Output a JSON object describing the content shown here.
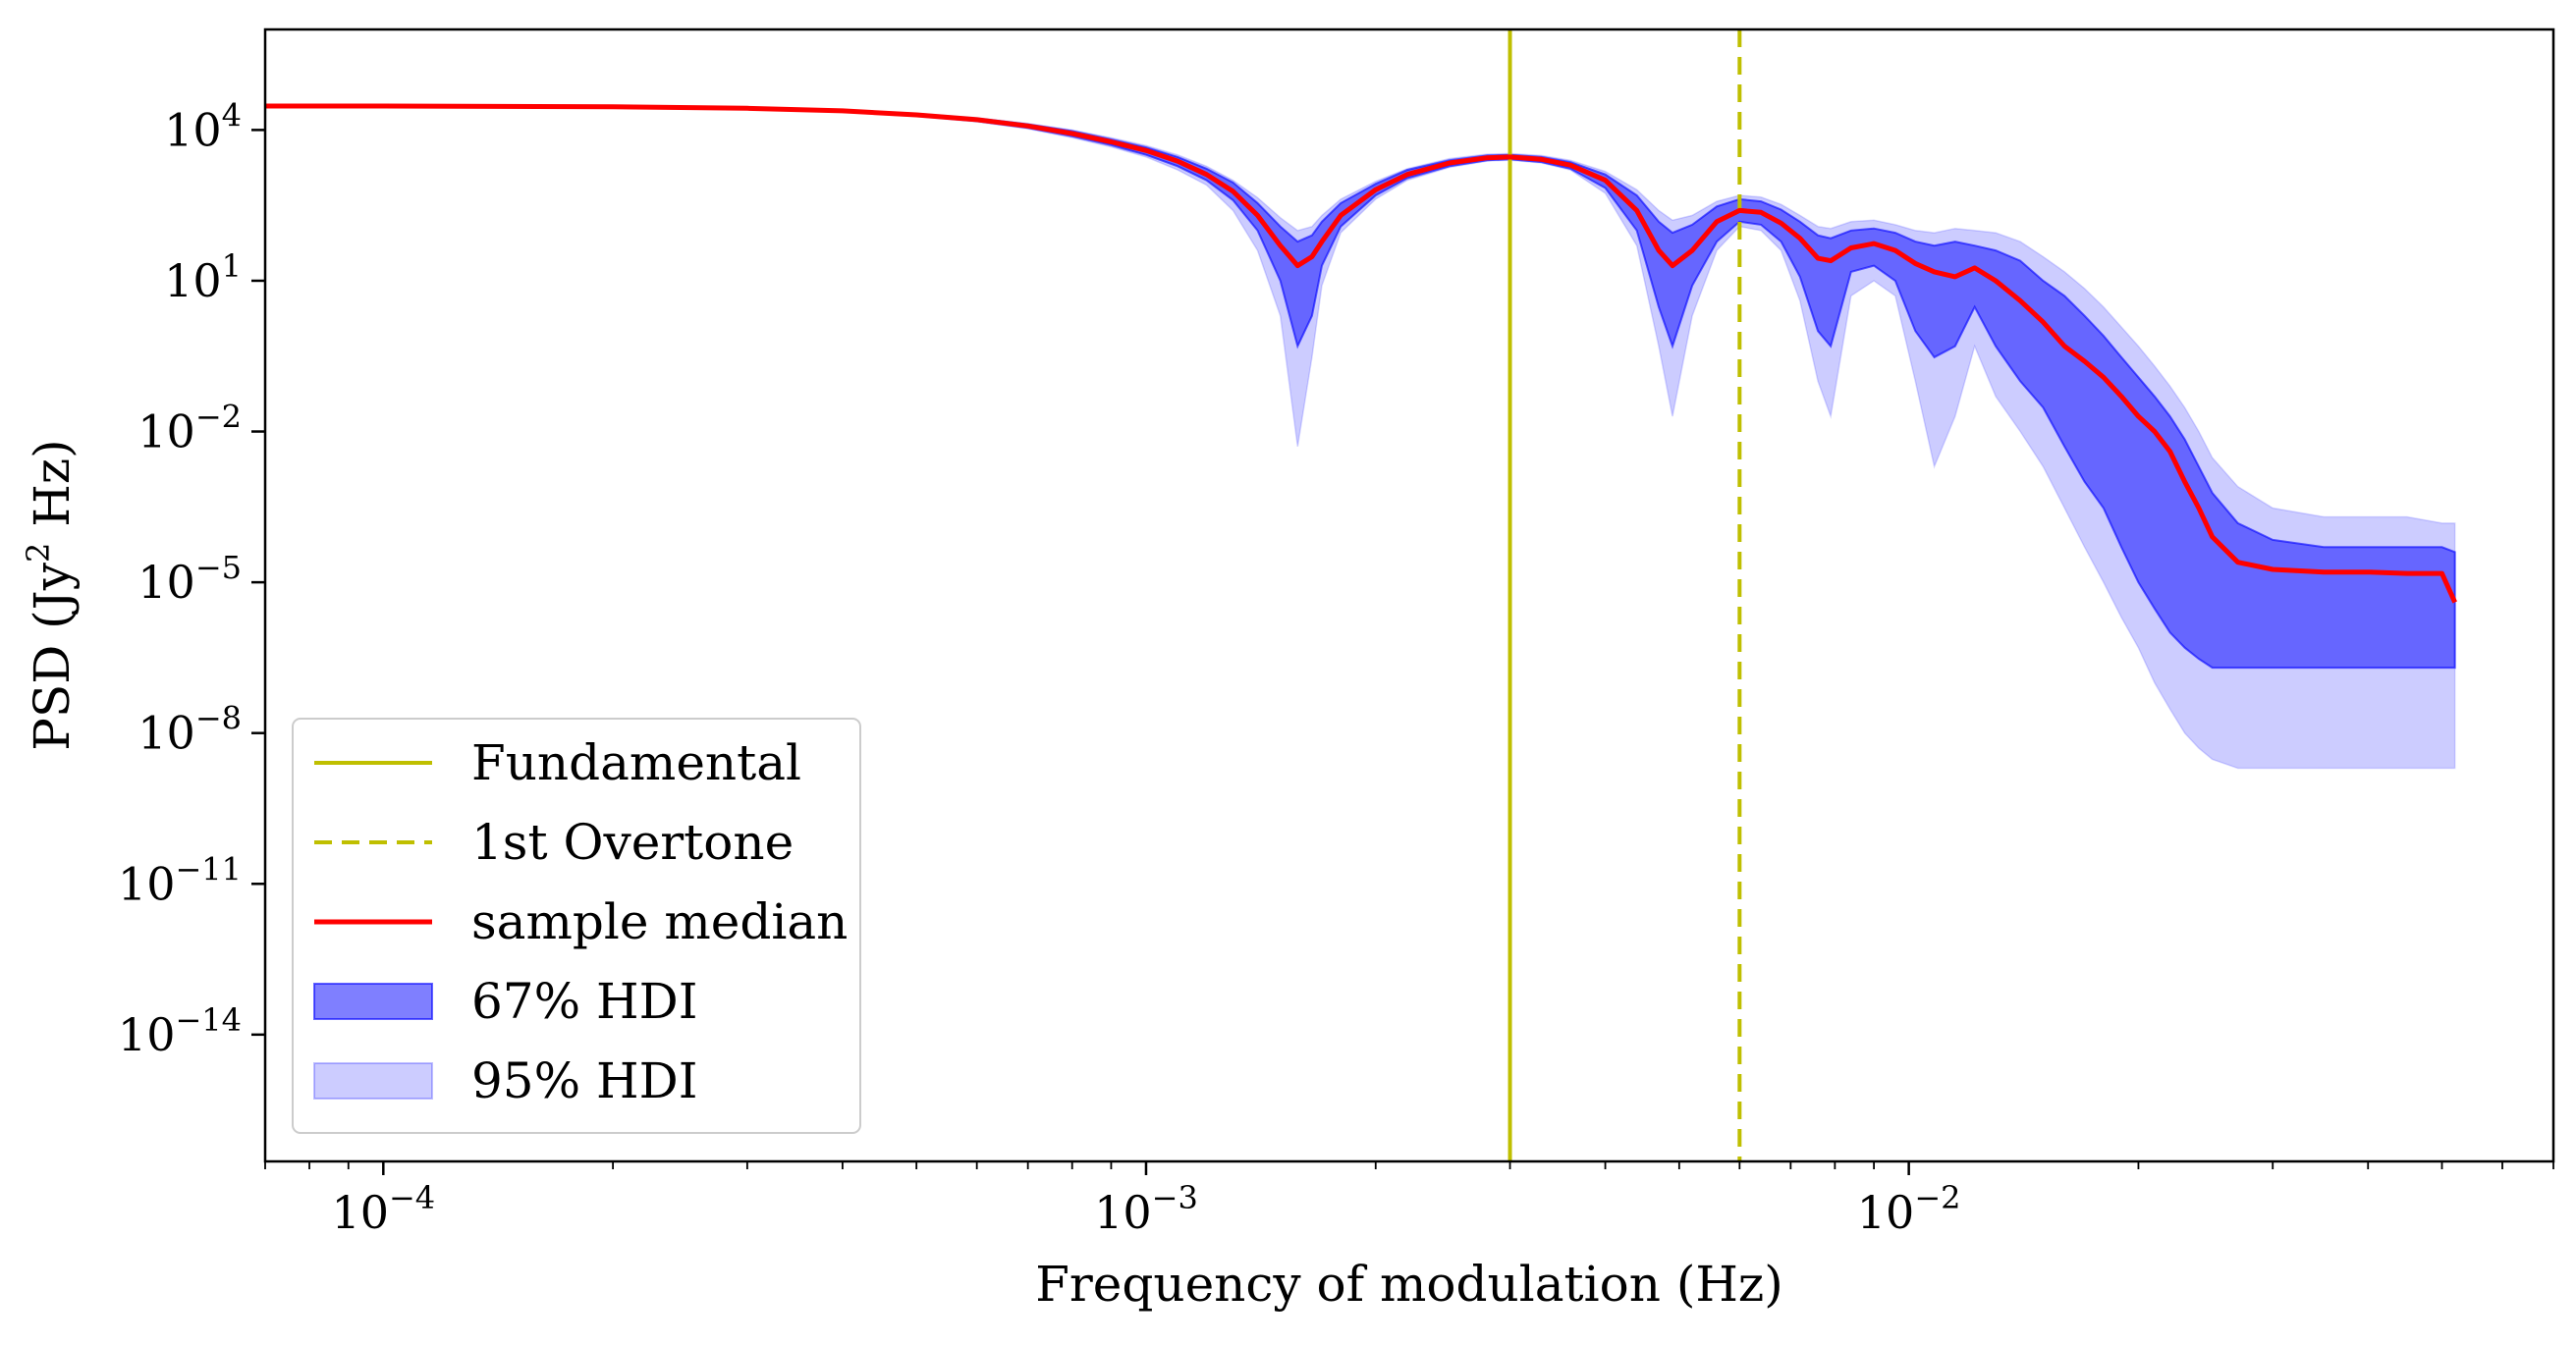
{
  "chart_data": {
    "type": "area",
    "xlabel": "Frequency of modulation (Hz)",
    "ylabel": {
      "pre": "PSD (Jy",
      "sup": "2",
      "post": " Hz)"
    },
    "x_scale": "log",
    "y_scale": "log",
    "xlim": [
      7e-05,
      0.07
    ],
    "ylim": [
      3e-17,
      1000000.0
    ],
    "x_ticks": [
      {
        "value": 0.0001,
        "base": "10",
        "exp": "−4"
      },
      {
        "value": 0.001,
        "base": "10",
        "exp": "−3"
      },
      {
        "value": 0.01,
        "base": "10",
        "exp": "−2"
      }
    ],
    "y_ticks": [
      {
        "value": 10000.0,
        "base": "10",
        "exp": "4"
      },
      {
        "value": 10.0,
        "base": "10",
        "exp": "1"
      },
      {
        "value": 0.01,
        "base": "10",
        "exp": "−2"
      },
      {
        "value": 1e-05,
        "base": "10",
        "exp": "−5"
      },
      {
        "value": 1e-08,
        "base": "10",
        "exp": "−8"
      },
      {
        "value": 1e-11,
        "base": "10",
        "exp": "−11"
      },
      {
        "value": 1e-14,
        "base": "10",
        "exp": "−14"
      }
    ],
    "grid": false,
    "vlines": [
      {
        "name": "Fundamental",
        "x": 0.003,
        "color": "#bfbf00",
        "style": "solid"
      },
      {
        "name": "1st Overtone",
        "x": 0.006,
        "color": "#bfbf00",
        "style": "dashed"
      }
    ],
    "series": [
      {
        "name": "sample median",
        "color": "#ff0000",
        "x": [
          7e-05,
          0.0001,
          0.0002,
          0.0003,
          0.0004,
          0.0005,
          0.0006,
          0.0007,
          0.0008,
          0.0009,
          0.001,
          0.0011,
          0.0012,
          0.0013,
          0.0014,
          0.0015,
          0.00158,
          0.00165,
          0.0017,
          0.0018,
          0.002,
          0.0022,
          0.0025,
          0.0028,
          0.003,
          0.0033,
          0.0036,
          0.004,
          0.0044,
          0.0047,
          0.0049,
          0.0052,
          0.0056,
          0.006,
          0.0064,
          0.0068,
          0.0072,
          0.0076,
          0.0079,
          0.0084,
          0.009,
          0.0096,
          0.0102,
          0.0108,
          0.0115,
          0.0122,
          0.013,
          0.014,
          0.015,
          0.016,
          0.017,
          0.018,
          0.019,
          0.02,
          0.021,
          0.022,
          0.023,
          0.024,
          0.025,
          0.027,
          0.03,
          0.035,
          0.04,
          0.045,
          0.05,
          0.052
        ],
        "values": [
          30000,
          30000,
          29000,
          27000,
          24000,
          20000,
          16000,
          12000,
          8500,
          5800,
          3900,
          2400,
          1300,
          600,
          200,
          50,
          20,
          30,
          60,
          200,
          650,
          1300,
          2200,
          2800,
          2900,
          2600,
          2000,
          1000,
          250,
          40,
          20,
          40,
          150,
          250,
          230,
          140,
          70,
          28,
          25,
          45,
          55,
          40,
          22,
          15,
          12,
          18,
          10,
          4,
          1.5,
          0.5,
          0.25,
          0.12,
          0.05,
          0.02,
          0.01,
          0.004,
          0.001,
          0.0003,
          8e-05,
          2.5e-05,
          1.8e-05,
          1.6e-05,
          1.6e-05,
          1.5e-05,
          1.5e-05,
          4e-06
        ]
      },
      {
        "name": "67% HDI",
        "color": "#0000ff",
        "opacity": 0.5,
        "x": [
          7e-05,
          0.0001,
          0.0002,
          0.0003,
          0.0004,
          0.0005,
          0.0006,
          0.0007,
          0.0008,
          0.0009,
          0.001,
          0.0011,
          0.0012,
          0.0013,
          0.0014,
          0.0015,
          0.00158,
          0.00165,
          0.0017,
          0.0018,
          0.002,
          0.0022,
          0.0025,
          0.0028,
          0.003,
          0.0033,
          0.0036,
          0.004,
          0.0044,
          0.0047,
          0.0049,
          0.0052,
          0.0056,
          0.006,
          0.0064,
          0.0068,
          0.0072,
          0.0076,
          0.0079,
          0.0084,
          0.009,
          0.0096,
          0.0102,
          0.0108,
          0.0115,
          0.0122,
          0.013,
          0.014,
          0.015,
          0.016,
          0.017,
          0.018,
          0.019,
          0.02,
          0.021,
          0.022,
          0.023,
          0.024,
          0.025,
          0.027,
          0.03,
          0.035,
          0.04,
          0.045,
          0.05,
          0.052
        ],
        "lower": [
          29500,
          29500,
          28500,
          26000,
          23000,
          19000,
          15000,
          11000,
          7500,
          5000,
          3200,
          1900,
          1000,
          400,
          100,
          10,
          0.5,
          2,
          20,
          120,
          500,
          1100,
          1900,
          2500,
          2600,
          2300,
          1700,
          700,
          100,
          3,
          0.5,
          8,
          60,
          150,
          130,
          60,
          12,
          1,
          0.5,
          15,
          20,
          10,
          1,
          0.3,
          0.5,
          3,
          0.5,
          0.1,
          0.03,
          0.005,
          0.001,
          0.0003,
          5e-05,
          1e-05,
          3e-06,
          1e-06,
          5e-07,
          3e-07,
          2e-07,
          2e-07,
          2e-07,
          2e-07,
          2e-07,
          2e-07,
          2e-07,
          2e-07
        ],
        "upper": [
          30500,
          30500,
          29500,
          28000,
          25000,
          21000,
          17000,
          13000,
          9500,
          6500,
          4500,
          2900,
          1700,
          900,
          350,
          120,
          60,
          80,
          150,
          350,
          850,
          1600,
          2500,
          3100,
          3200,
          2900,
          2300,
          1300,
          500,
          150,
          90,
          130,
          300,
          420,
          380,
          260,
          150,
          80,
          70,
          100,
          110,
          90,
          60,
          50,
          60,
          50,
          40,
          25,
          10,
          5,
          2,
          0.8,
          0.3,
          0.12,
          0.05,
          0.02,
          0.007,
          0.002,
          0.0006,
          0.00015,
          7e-05,
          5e-05,
          5e-05,
          5e-05,
          5e-05,
          4e-05
        ]
      },
      {
        "name": "95% HDI",
        "color": "#0000ff",
        "opacity": 0.2,
        "x": [
          7e-05,
          0.0001,
          0.0002,
          0.0003,
          0.0004,
          0.0005,
          0.0006,
          0.0007,
          0.0008,
          0.0009,
          0.001,
          0.0011,
          0.0012,
          0.0013,
          0.0014,
          0.0015,
          0.00158,
          0.00165,
          0.0017,
          0.0018,
          0.002,
          0.0022,
          0.0025,
          0.0028,
          0.003,
          0.0033,
          0.0036,
          0.004,
          0.0044,
          0.0047,
          0.0049,
          0.0052,
          0.0056,
          0.006,
          0.0064,
          0.0068,
          0.0072,
          0.0076,
          0.0079,
          0.0084,
          0.009,
          0.0096,
          0.0102,
          0.0108,
          0.0115,
          0.0122,
          0.013,
          0.014,
          0.015,
          0.016,
          0.017,
          0.018,
          0.019,
          0.02,
          0.021,
          0.022,
          0.023,
          0.024,
          0.025,
          0.027,
          0.03,
          0.035,
          0.04,
          0.045,
          0.05,
          0.052
        ],
        "lower": [
          29000,
          29000,
          28000,
          25500,
          22500,
          18500,
          14500,
          10500,
          7000,
          4600,
          2900,
          1600,
          800,
          250,
          40,
          2,
          0.005,
          0.3,
          8,
          90,
          420,
          1000,
          1800,
          2400,
          2500,
          2200,
          1600,
          550,
          50,
          0.5,
          0.02,
          2,
          40,
          120,
          100,
          40,
          4,
          0.1,
          0.02,
          5,
          10,
          5,
          0.1,
          0.002,
          0.02,
          0.5,
          0.05,
          0.01,
          0.002,
          0.0003,
          5e-05,
          1e-05,
          2e-06,
          5e-07,
          1e-07,
          3e-08,
          1e-08,
          5e-09,
          3e-09,
          2e-09,
          2e-09,
          2e-09,
          2e-09,
          2e-09,
          2e-09,
          2e-09
        ],
        "upper": [
          31000,
          31000,
          30000,
          28500,
          25500,
          21500,
          17500,
          13500,
          10000,
          7000,
          4900,
          3200,
          1900,
          1000,
          450,
          180,
          100,
          120,
          200,
          420,
          950,
          1700,
          2700,
          3300,
          3400,
          3100,
          2500,
          1500,
          650,
          250,
          160,
          200,
          380,
          500,
          460,
          330,
          200,
          120,
          110,
          150,
          160,
          130,
          100,
          90,
          110,
          100,
          90,
          60,
          30,
          15,
          7,
          3,
          1.2,
          0.5,
          0.2,
          0.08,
          0.03,
          0.01,
          0.003,
          0.0008,
          0.0003,
          0.0002,
          0.0002,
          0.0002,
          0.00015,
          0.00015
        ]
      }
    ],
    "legend": {
      "placement": "lower-left",
      "entries": [
        {
          "label": "Fundamental",
          "kind": "line",
          "color": "#bfbf00",
          "style": "solid"
        },
        {
          "label": "1st Overtone",
          "kind": "line",
          "color": "#bfbf00",
          "style": "dashed"
        },
        {
          "label": "sample median",
          "kind": "line",
          "color": "#ff0000",
          "style": "solid"
        },
        {
          "label": "67% HDI",
          "kind": "patch",
          "color": "#0000ff",
          "opacity": 0.5
        },
        {
          "label": "95% HDI",
          "kind": "patch",
          "color": "#0000ff",
          "opacity": 0.2
        }
      ]
    }
  }
}
